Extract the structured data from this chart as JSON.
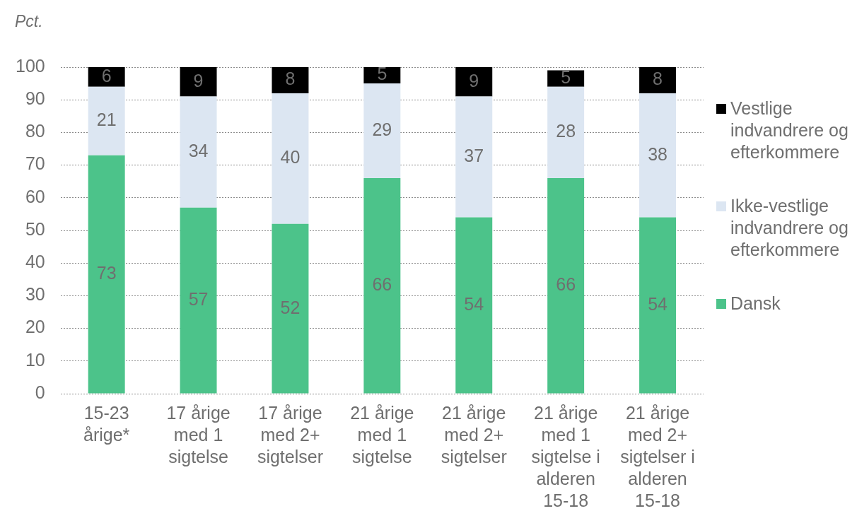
{
  "chart_data": {
    "type": "bar",
    "stacked": true,
    "ylabel": "Pct.",
    "categories": [
      "15-23 årige*",
      "17 årige med 1 sigtelse",
      "17 årige med 2+ sigtelser",
      "21 årige med 1 sigtelse",
      "21 årige med 2+ sigtelser",
      "21 årige med 1 sigtelse i alderen 15-18",
      "21 årige med 2+ sigtelser i alderen 15-18"
    ],
    "series": [
      {
        "name": "Dansk",
        "color": "#4cc38a",
        "values": [
          73,
          57,
          52,
          66,
          54,
          66,
          54
        ]
      },
      {
        "name": "Ikke-vestlige indvandrere og efterkommere",
        "color": "#dce6f2",
        "values": [
          21,
          34,
          40,
          29,
          37,
          28,
          38
        ]
      },
      {
        "name": "Vestlige indvandrere og efterkommere",
        "color": "#000000",
        "values": [
          6,
          9,
          8,
          5,
          9,
          5,
          8
        ]
      }
    ],
    "ylim": [
      0,
      100
    ],
    "yticks": [
      0,
      10,
      20,
      30,
      40,
      50,
      60,
      70,
      80,
      90,
      100
    ],
    "grid": "y",
    "legend": "right",
    "data_labels": true
  }
}
